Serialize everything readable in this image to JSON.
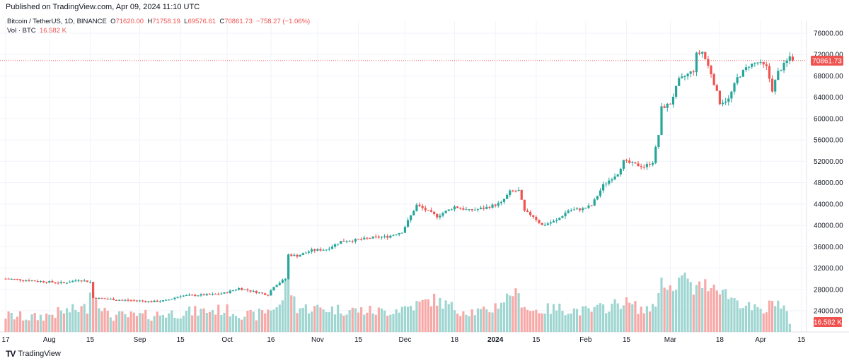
{
  "header": {
    "published": "Published on TradingView.com, Apr 09, 2024 11:10 UTC"
  },
  "legend": {
    "symbol": "Bitcoin / TetherUS, 1D, BINANCE",
    "o_label": "O",
    "o": "71620.00",
    "h_label": "H",
    "h": "71758.19",
    "l_label": "L",
    "l": "69576.61",
    "c_label": "C",
    "c": "70861.73",
    "change": "−758.27 (−1.06%)",
    "vol_label": "Vol · BTC",
    "vol_value": "16.582 K"
  },
  "brand": {
    "name": "TradingView",
    "logo": "TV"
  },
  "colors": {
    "up": "#26a69a",
    "down": "#ef5350",
    "up_vol": "#9fd6d1",
    "down_vol": "#f7a9a7",
    "text": "#131722"
  },
  "chart_data": {
    "type": "candlestick",
    "price_axis": {
      "ticks": [
        24000,
        28000,
        32000,
        36000,
        40000,
        44000,
        48000,
        52000,
        56000,
        60000,
        64000,
        68000,
        72000,
        76000
      ],
      "tick_labels": [
        "24000.00",
        "28000.00",
        "32000.00",
        "36000.00",
        "40000.00",
        "44000.00",
        "48000.00",
        "52000.00",
        "56000.00",
        "60000.00",
        "64000.00",
        "68000.00",
        "72000.00",
        "76000.00"
      ],
      "range": [
        20000,
        78000
      ]
    },
    "time_axis": {
      "ticks": [
        {
          "label": "17",
          "day": 0
        },
        {
          "label": "Aug",
          "day": 15
        },
        {
          "label": "15",
          "day": 29
        },
        {
          "label": "Sep",
          "day": 46
        },
        {
          "label": "15",
          "day": 60
        },
        {
          "label": "Oct",
          "day": 76
        },
        {
          "label": "16",
          "day": 91
        },
        {
          "label": "Nov",
          "day": 107
        },
        {
          "label": "15",
          "day": 121
        },
        {
          "label": "Dec",
          "day": 137
        },
        {
          "label": "18",
          "day": 154
        },
        {
          "label": "2024",
          "day": 168
        },
        {
          "label": "15",
          "day": 182
        },
        {
          "label": "Feb",
          "day": 199
        },
        {
          "label": "15",
          "day": 213
        },
        {
          "label": "Mar",
          "day": 228
        },
        {
          "label": "18",
          "day": 245
        },
        {
          "label": "Apr",
          "day": 259
        },
        {
          "label": "15",
          "day": 273
        }
      ]
    },
    "last_price": 70861.73,
    "last_price_label": "70861.73",
    "last_volume": 16582,
    "last_volume_label": "16.582 K",
    "anchors": [
      [
        0,
        30000
      ],
      [
        10,
        29600
      ],
      [
        20,
        29200
      ],
      [
        25,
        29800
      ],
      [
        29,
        29400
      ],
      [
        30,
        26400
      ],
      [
        40,
        26000
      ],
      [
        45,
        25900
      ],
      [
        50,
        25700
      ],
      [
        55,
        25900
      ],
      [
        60,
        26800
      ],
      [
        70,
        27000
      ],
      [
        75,
        27300
      ],
      [
        80,
        28200
      ],
      [
        85,
        27600
      ],
      [
        90,
        27000
      ],
      [
        92,
        28600
      ],
      [
        96,
        30000
      ],
      [
        97,
        34500
      ],
      [
        100,
        34300
      ],
      [
        105,
        35300
      ],
      [
        110,
        35500
      ],
      [
        115,
        37000
      ],
      [
        121,
        37300
      ],
      [
        126,
        37700
      ],
      [
        131,
        37900
      ],
      [
        136,
        38800
      ],
      [
        141,
        43800
      ],
      [
        148,
        41700
      ],
      [
        154,
        43500
      ],
      [
        159,
        42800
      ],
      [
        164,
        43200
      ],
      [
        170,
        44200
      ],
      [
        173,
        46300
      ],
      [
        176,
        46500
      ],
      [
        178,
        42600
      ],
      [
        181,
        41700
      ],
      [
        184,
        40000
      ],
      [
        189,
        40900
      ],
      [
        193,
        42800
      ],
      [
        198,
        43100
      ],
      [
        201,
        43700
      ],
      [
        205,
        47500
      ],
      [
        210,
        49800
      ],
      [
        212,
        52000
      ],
      [
        215,
        51500
      ],
      [
        219,
        51000
      ],
      [
        222,
        51900
      ],
      [
        224,
        57000
      ],
      [
        225,
        62000
      ],
      [
        228,
        62800
      ],
      [
        231,
        67200
      ],
      [
        236,
        69000
      ],
      [
        237,
        72000
      ],
      [
        239,
        72500
      ],
      [
        242,
        68500
      ],
      [
        245,
        63000
      ],
      [
        248,
        63600
      ],
      [
        251,
        67600
      ],
      [
        255,
        70000
      ],
      [
        258,
        70500
      ],
      [
        261,
        69600
      ],
      [
        263,
        65400
      ],
      [
        265,
        68700
      ],
      [
        268,
        70700
      ],
      [
        269,
        71620
      ],
      [
        270,
        70861.73
      ]
    ],
    "volume_anchors": [
      [
        0,
        24000
      ],
      [
        10,
        23500
      ],
      [
        20,
        25000
      ],
      [
        28,
        26000
      ],
      [
        29,
        31000
      ],
      [
        35,
        24000
      ],
      [
        45,
        23800
      ],
      [
        55,
        24500
      ],
      [
        65,
        25000
      ],
      [
        75,
        25500
      ],
      [
        85,
        23800
      ],
      [
        95,
        27000
      ],
      [
        96,
        34000
      ],
      [
        100,
        26000
      ],
      [
        115,
        25500
      ],
      [
        130,
        25000
      ],
      [
        140,
        26500
      ],
      [
        147,
        28000
      ],
      [
        155,
        25500
      ],
      [
        165,
        24800
      ],
      [
        172,
        28500
      ],
      [
        174,
        30000
      ],
      [
        180,
        25200
      ],
      [
        190,
        25800
      ],
      [
        200,
        25000
      ],
      [
        208,
        26500
      ],
      [
        212,
        27500
      ],
      [
        220,
        25000
      ],
      [
        224,
        28500
      ],
      [
        225,
        33500
      ],
      [
        230,
        29000
      ],
      [
        232,
        35000
      ],
      [
        236,
        30000
      ],
      [
        239,
        31800
      ],
      [
        244,
        31500
      ],
      [
        248,
        29000
      ],
      [
        255,
        26000
      ],
      [
        260,
        24800
      ],
      [
        264,
        28000
      ],
      [
        268,
        25000
      ],
      [
        270,
        16582
      ]
    ],
    "volume_display_range": [
      20000,
      40000
    ]
  }
}
